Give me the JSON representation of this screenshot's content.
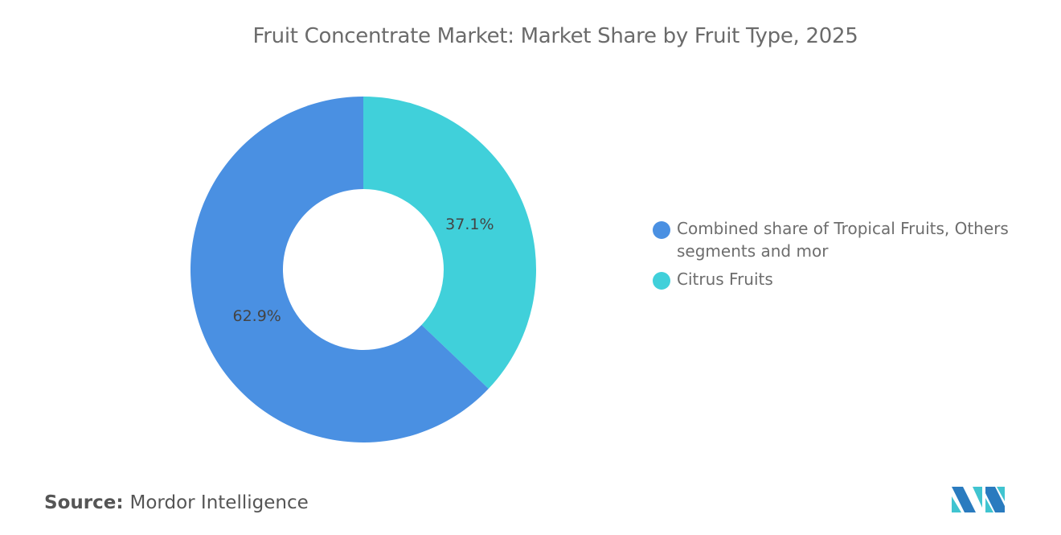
{
  "chart_data": {
    "type": "pie",
    "variant": "donut",
    "title": "Fruit Concentrate Market: Market Share by Fruit Type, 2025",
    "slices": [
      {
        "label": "Citrus Fruits",
        "value": 37.1,
        "display": "37.1%",
        "color": "#40D0DA"
      },
      {
        "label": "Combined share of Tropical Fruits, Others segments and mor",
        "value": 62.9,
        "display": "62.9%",
        "color": "#4A90E2"
      }
    ],
    "legend_order": [
      1,
      0
    ],
    "legend_position": "right"
  },
  "source": {
    "label": "Source:",
    "value": "Mordor Intelligence"
  },
  "logo": {
    "text": "MI"
  }
}
